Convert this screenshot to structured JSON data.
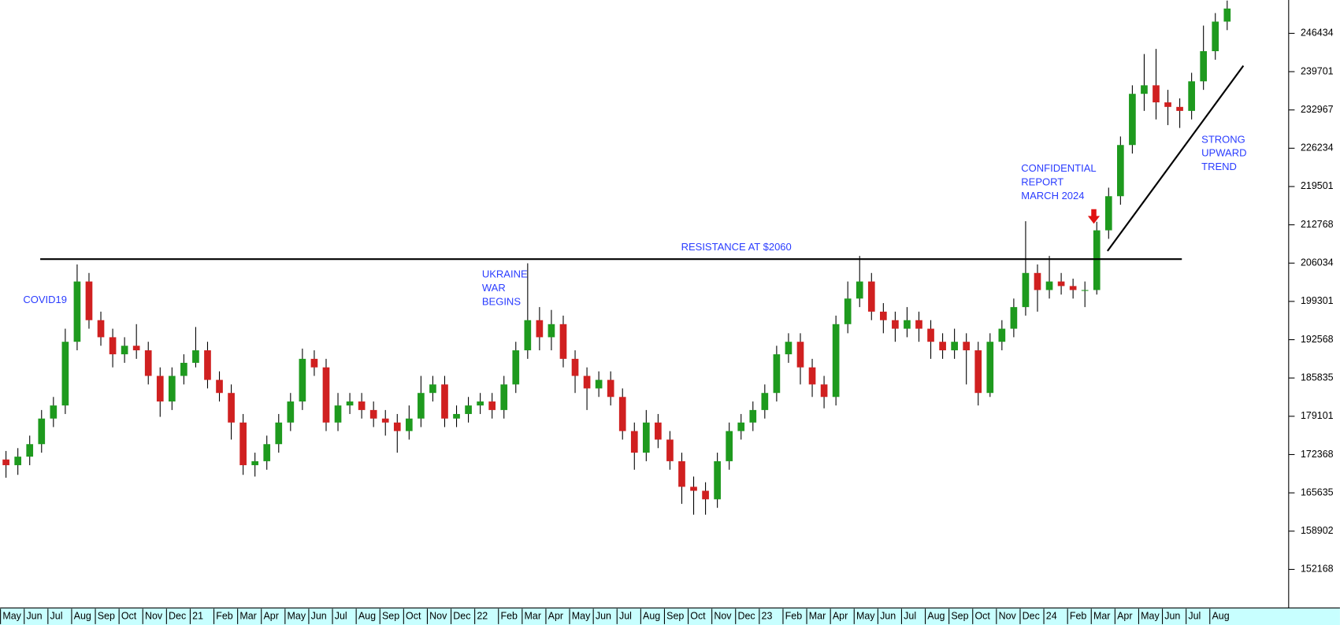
{
  "chart_data": {
    "type": "candlestick",
    "categories": [
      "May",
      null,
      "Jun",
      null,
      "Jul",
      null,
      "Aug",
      null,
      "Sep",
      null,
      "Oct",
      null,
      "Nov",
      null,
      "Dec",
      null,
      "21",
      null,
      "Feb",
      null,
      "Mar",
      null,
      "Apr",
      null,
      "May",
      null,
      "Jun",
      null,
      "Jul",
      null,
      "Aug",
      null,
      "Sep",
      null,
      "Oct",
      null,
      "Nov",
      null,
      "Dec",
      null,
      "22",
      null,
      "Feb",
      null,
      "Mar",
      null,
      "Apr",
      null,
      "May",
      null,
      "Jun",
      null,
      "Jul",
      null,
      "Aug",
      null,
      "Sep",
      null,
      "Oct",
      null,
      "Nov",
      null,
      "Dec",
      null,
      "23",
      null,
      "Feb",
      null,
      "Mar",
      null,
      "Apr",
      null,
      "May",
      null,
      "Jun",
      null,
      "Jul",
      null,
      "Aug",
      null,
      "Sep",
      null,
      "Oct",
      null,
      "Nov",
      null,
      "Dec",
      null,
      "24",
      null,
      "Feb",
      null,
      "Mar",
      null,
      "Apr",
      null,
      "May",
      null,
      "Jun",
      null,
      "Jul",
      null,
      "Aug",
      null
    ],
    "series": [
      {
        "up_color": "#1e9a1e",
        "down_color": "#d02020",
        "wick_color": "#000000",
        "open": [
          171500,
          170500,
          172000,
          174200,
          178700,
          181000,
          192200,
          202800,
          196000,
          193000,
          190000,
          191500,
          190700,
          186200,
          181700,
          186200,
          188500,
          190700,
          185500,
          183200,
          178000,
          170500,
          171200,
          174200,
          178000,
          181700,
          189200,
          187700,
          178000,
          181000,
          181700,
          180200,
          178700,
          178000,
          176500,
          178700,
          183200,
          184700,
          178700,
          179500,
          181000,
          181700,
          180200,
          184700,
          190700,
          196000,
          193000,
          195300,
          189200,
          186200,
          184000,
          185500,
          182500,
          176500,
          172700,
          178000,
          175000,
          171200,
          166700,
          166000,
          164500,
          171200,
          176500,
          178000,
          180200,
          183200,
          190000,
          192200,
          187700,
          184700,
          182500,
          195300,
          199800,
          202800,
          197500,
          196000,
          194500,
          196000,
          194500,
          192200,
          190700,
          192200,
          190700,
          183200,
          192200,
          194500,
          198300,
          204300,
          201300,
          202800,
          202000,
          201300,
          201300,
          211800,
          217800,
          226800,
          235800,
          237300,
          234300,
          233500,
          232800,
          238000,
          243300,
          248500
        ],
        "high": [
          173000,
          173500,
          175700,
          180200,
          182500,
          194500,
          205800,
          204300,
          197500,
          194500,
          193000,
          195300,
          192200,
          187700,
          187700,
          190000,
          194800,
          192200,
          187000,
          184700,
          179500,
          172700,
          175700,
          179500,
          183200,
          191000,
          190700,
          189200,
          183200,
          183200,
          183200,
          181700,
          180200,
          179500,
          181000,
          186200,
          186200,
          186200,
          181000,
          182500,
          183200,
          183200,
          186200,
          192200,
          206000,
          198300,
          197800,
          196800,
          190700,
          187700,
          187000,
          187000,
          184000,
          178000,
          180200,
          179500,
          176500,
          172700,
          168500,
          167500,
          172700,
          178000,
          179500,
          181700,
          184700,
          191500,
          193700,
          193700,
          189200,
          186200,
          196800,
          202800,
          207300,
          204300,
          199000,
          197500,
          198300,
          197500,
          196000,
          193700,
          194500,
          193700,
          192200,
          193700,
          196000,
          199800,
          213400,
          205800,
          207300,
          204300,
          203300,
          202800,
          213300,
          219300,
          228300,
          237300,
          242800,
          243700,
          236500,
          235000,
          239500,
          247800,
          250000,
          252200
        ],
        "low": [
          168300,
          168800,
          170500,
          172700,
          177200,
          179500,
          190700,
          194500,
          191500,
          187700,
          188500,
          189200,
          184700,
          179000,
          180200,
          184700,
          187700,
          184000,
          181700,
          175000,
          168800,
          168500,
          169700,
          172700,
          176500,
          180200,
          186200,
          176500,
          176500,
          179500,
          178700,
          177200,
          175700,
          172700,
          175000,
          177200,
          181700,
          177200,
          177200,
          178000,
          179500,
          178700,
          178700,
          183200,
          189200,
          190700,
          190700,
          187700,
          183200,
          180200,
          182500,
          181000,
          175000,
          169700,
          171200,
          173500,
          169700,
          163700,
          161800,
          161800,
          163000,
          169700,
          175000,
          176500,
          178700,
          181700,
          188500,
          184700,
          182500,
          180500,
          181000,
          193700,
          198300,
          196000,
          193700,
          192200,
          193000,
          192200,
          189200,
          189200,
          189200,
          184700,
          181000,
          182500,
          190700,
          193000,
          196800,
          197500,
          199800,
          200500,
          199800,
          198300,
          200500,
          210300,
          216300,
          225300,
          232800,
          231300,
          230300,
          229800,
          231300,
          236500,
          241800,
          247000
        ],
        "close": [
          170500,
          172000,
          174200,
          178700,
          181000,
          192200,
          202800,
          196000,
          193000,
          190000,
          191500,
          190700,
          186200,
          181700,
          186200,
          188500,
          190700,
          185500,
          183200,
          178000,
          170500,
          171200,
          174200,
          178000,
          181700,
          189200,
          187700,
          178000,
          181000,
          181700,
          180200,
          178700,
          178000,
          176500,
          178700,
          183200,
          184700,
          178700,
          179500,
          181000,
          181700,
          180200,
          184700,
          190700,
          196000,
          193000,
          195300,
          189200,
          186200,
          184000,
          185500,
          182500,
          176500,
          172700,
          178000,
          175000,
          171200,
          166700,
          166000,
          164500,
          171200,
          176500,
          178000,
          180200,
          183200,
          190000,
          192200,
          187700,
          184700,
          182500,
          195300,
          199800,
          202800,
          197500,
          196000,
          194500,
          196000,
          194500,
          192200,
          190700,
          192200,
          190700,
          183200,
          192200,
          194500,
          198300,
          204300,
          201300,
          202800,
          202000,
          201300,
          201300,
          211800,
          217800,
          226800,
          235800,
          237300,
          234300,
          233500,
          232800,
          238000,
          243300,
          248500,
          250800
        ]
      }
    ],
    "ylim": [
      145400,
      252300
    ],
    "yticks": [
      152168,
      158902,
      165635,
      172368,
      179101,
      185835,
      192568,
      199301,
      206034,
      212768,
      219501,
      226234,
      232967,
      239701,
      246434
    ],
    "annotations": [
      {
        "lines": [
          "COVID19"
        ]
      },
      {
        "lines": [
          "UKRAINE",
          "WAR",
          "BEGINS"
        ]
      },
      {
        "lines": [
          "RESISTANCE AT $2060"
        ]
      },
      {
        "lines": [
          "CONFIDENTIAL",
          "REPORT",
          "MARCH 2024"
        ]
      },
      {
        "lines": [
          "STRONG",
          "UPWARD",
          "TREND"
        ]
      }
    ]
  }
}
